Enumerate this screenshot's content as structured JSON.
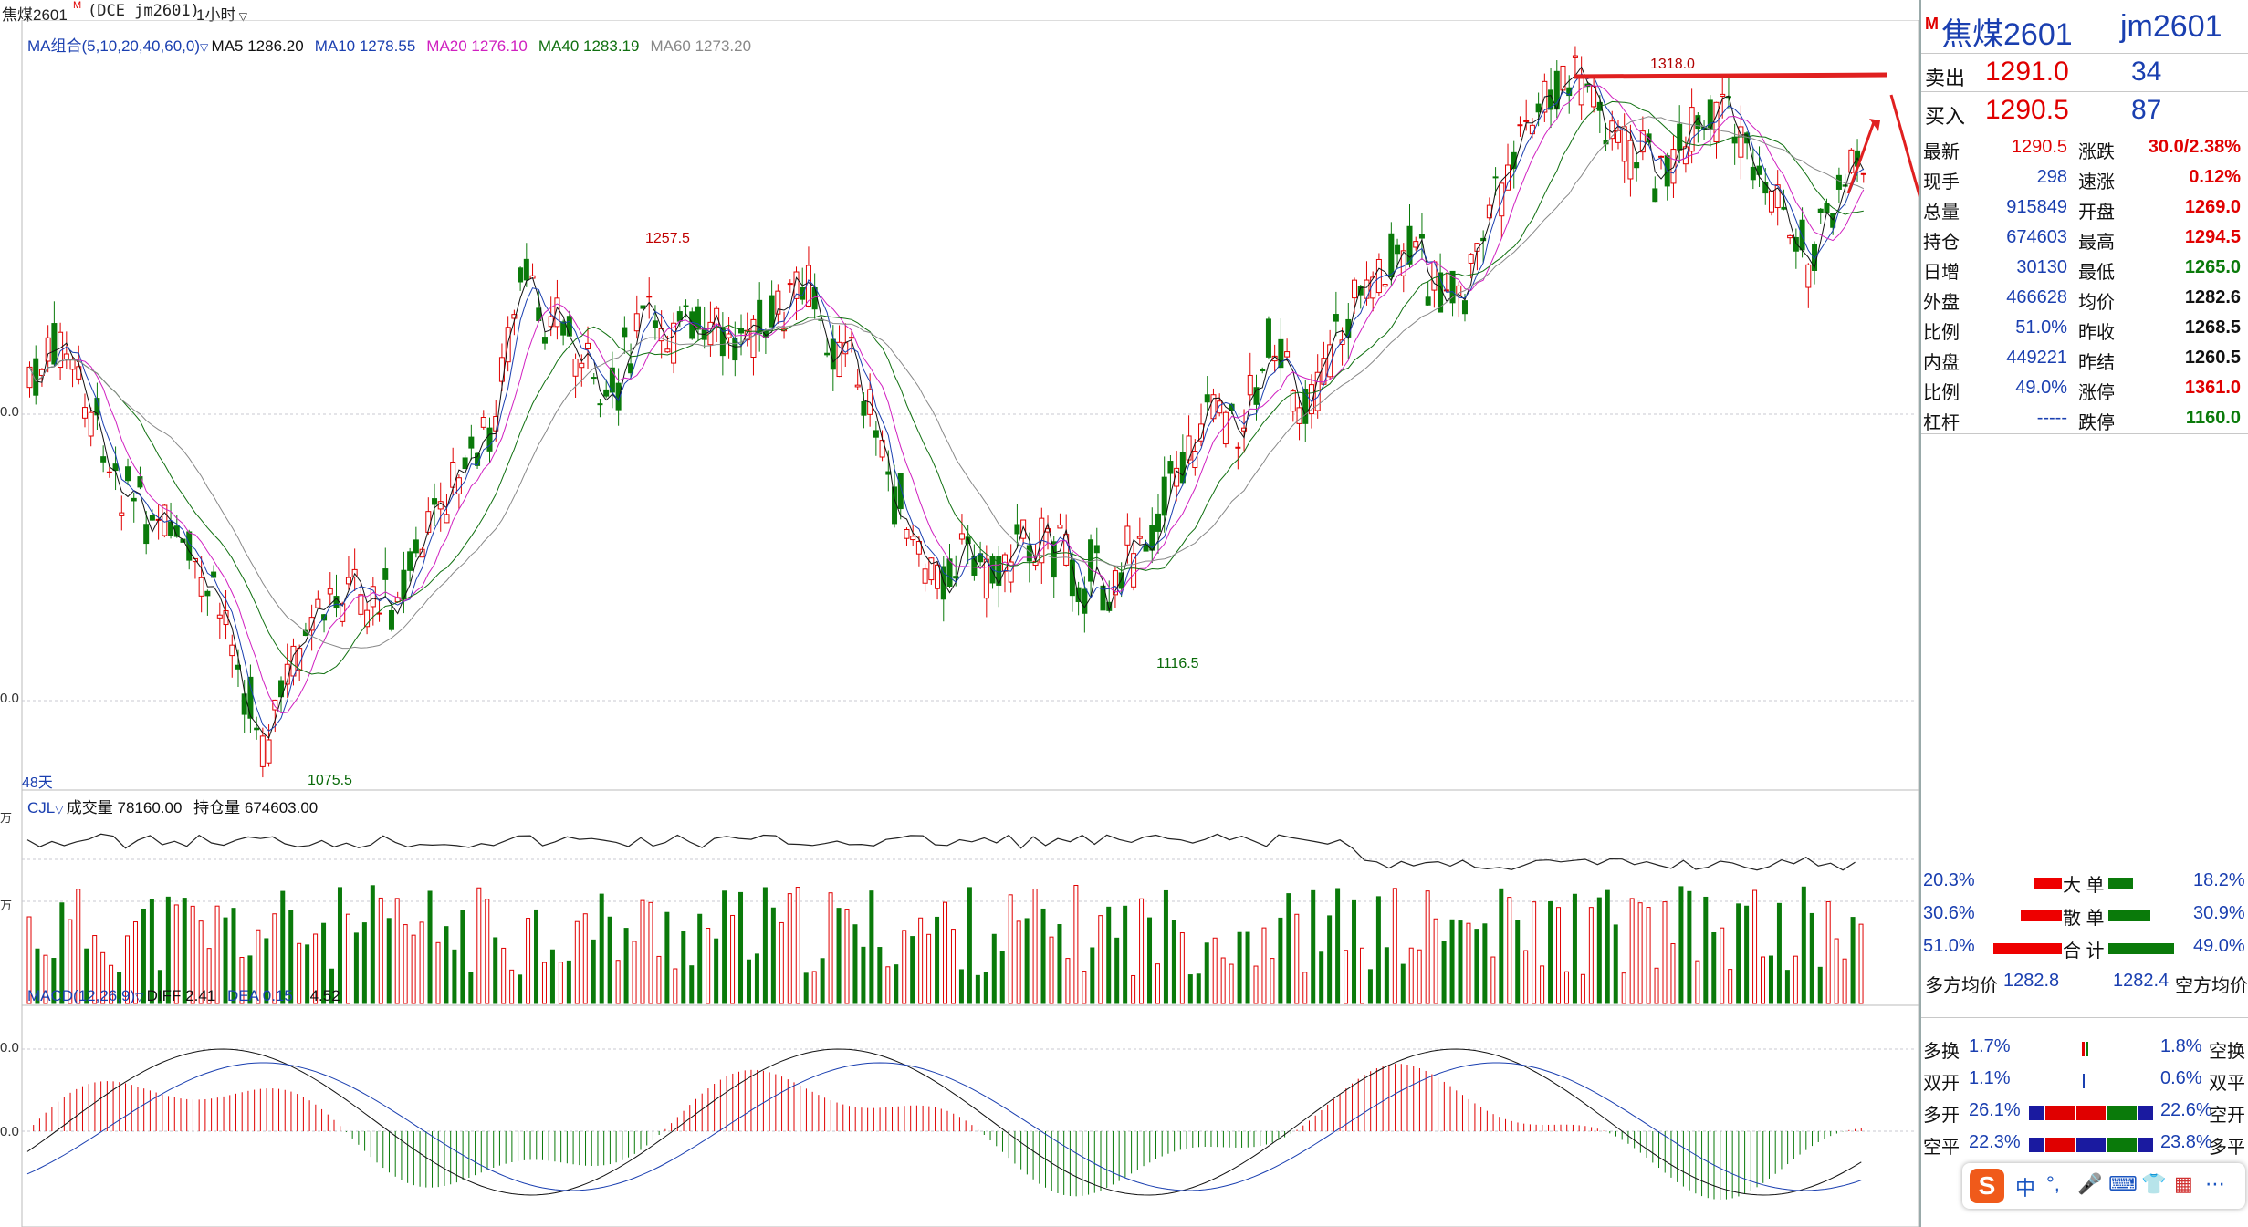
{
  "title_bar": {
    "contract": "焦煤2601",
    "flag": "M",
    "exchange": "(DCE  jm2601)",
    "period": "1小时"
  },
  "price_pane": {
    "ma_legend": {
      "label": "MA组合(5,10,20,40,60,0)",
      "items": [
        {
          "text": "MA5 1286.20",
          "color": "#111111"
        },
        {
          "text": "MA10 1278.55",
          "color": "#1a3fb0"
        },
        {
          "text": "MA20 1276.10",
          "color": "#d020c0"
        },
        {
          "text": "MA40 1283.19",
          "color": "#107010"
        },
        {
          "text": "MA60 1273.20",
          "color": "#888888"
        }
      ]
    },
    "annotations": {
      "high_label": "1318.0",
      "peak_label": "1257.5",
      "low_label": "1116.5",
      "bottom_label": "1075.5",
      "days_label": "48天"
    },
    "axis_labels": [
      "0.0",
      "0.0"
    ]
  },
  "volume_pane": {
    "legend_label": "CJL",
    "volume_text": "成交量 78160.00",
    "oi_text": "持仓量 674603.00",
    "axis_labels": [
      "万",
      "万"
    ]
  },
  "macd_pane": {
    "legend_label": "MACD(12,26,9)",
    "diff_text": "DIFF 2.41",
    "dea_text": "DEA 0.15",
    "macd_text": "4.52",
    "axis_labels": [
      "0.0",
      "0.0"
    ]
  },
  "quote_panel": {
    "header": {
      "flag": "M",
      "name": "焦煤2601",
      "code": "jm2601"
    },
    "sell": {
      "label": "卖出",
      "price": "1291.0",
      "qty": "34"
    },
    "buy": {
      "label": "买入",
      "price": "1290.5",
      "qty": "87"
    },
    "stats": [
      {
        "l1": "最新",
        "v1": "1290.5",
        "l2": "涨跌",
        "v2": "30.0/2.38%"
      },
      {
        "l1": "现手",
        "v1": "298",
        "l2": "速涨",
        "v2": "0.12%"
      },
      {
        "l1": "总量",
        "v1": "915849",
        "l2": "开盘",
        "v2": "1269.0"
      },
      {
        "l1": "持仓",
        "v1": "674603",
        "l2": "最高",
        "v2": "1294.5"
      },
      {
        "l1": "日增",
        "v1": "30130",
        "l2": "最低",
        "v2": "1265.0"
      },
      {
        "l1": "外盘",
        "v1": "466628",
        "l2": "均价",
        "v2": "1282.6"
      },
      {
        "l1": "比例",
        "v1": "51.0%",
        "l2": "昨收",
        "v2": "1268.5"
      },
      {
        "l1": "内盘",
        "v1": "449221",
        "l2": "昨结",
        "v2": "1260.5"
      },
      {
        "l1": "比例",
        "v1": "49.0%",
        "l2": "涨停",
        "v2": "1361.0"
      },
      {
        "l1": "杠杆",
        "v1": "-----",
        "l2": "跌停",
        "v2": "1160.0"
      }
    ],
    "flow": [
      {
        "left": "20.3%",
        "label": "大 单",
        "right": "18.2%",
        "red_fraction": 0.3,
        "green_fraction": 0.27
      },
      {
        "left": "30.6%",
        "label": "散 单",
        "right": "30.9%",
        "red_fraction": 0.45,
        "green_fraction": 0.46
      },
      {
        "left": "51.0%",
        "label": "合 计",
        "right": "49.0%",
        "red_fraction": 0.75,
        "green_fraction": 0.72
      }
    ],
    "avg": {
      "long_label": "多方均价",
      "long_value": "1282.8",
      "short_value": "1282.4",
      "short_label": "空方均价"
    },
    "positions": [
      {
        "l": "多换",
        "lv": "1.7%",
        "rv": "1.8%",
        "r": "空换"
      },
      {
        "l": "双开",
        "lv": "1.1%",
        "rv": "0.6%",
        "r": "双平"
      },
      {
        "l": "多开",
        "lv": "26.1%",
        "rv": "22.6%",
        "r": "空开"
      },
      {
        "l": "空平",
        "lv": "22.3%",
        "rv": "23.8%",
        "r": "多平"
      }
    ]
  },
  "ime_toolbar": {
    "logo": "S",
    "items": [
      "中",
      "°,",
      "🎤",
      "⌨",
      "👕",
      "▦",
      "⋯"
    ]
  },
  "colors": {
    "up": "#e00000",
    "down": "#0a7a0a",
    "ma5": "#111111",
    "ma10": "#1a3fb0",
    "ma20": "#d020c0",
    "ma40": "#107010",
    "ma60": "#888888"
  }
}
